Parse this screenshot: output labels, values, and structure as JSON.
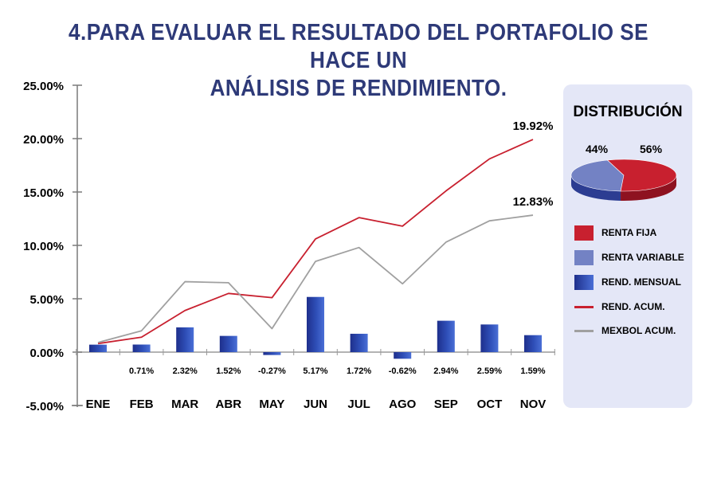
{
  "page": {
    "title_line1": "4.PARA EVALUAR EL RESULTADO DEL PORTAFOLIO SE HACE UN",
    "title_line2": "ANÁLISIS DE RENDIMIENTO."
  },
  "chart_data": {
    "type": "bar",
    "categories": [
      "ENE",
      "FEB",
      "MAR",
      "ABR",
      "MAY",
      "JUN",
      "JUL",
      "AGO",
      "SEP",
      "OCT",
      "NOV"
    ],
    "ylim": [
      -5,
      25
    ],
    "yticks": [
      -5,
      0,
      5,
      10,
      15,
      20,
      25
    ],
    "ytick_labels": [
      "-5.00%",
      "0.00%",
      "5.00%",
      "10.00%",
      "15.00%",
      "20.00%",
      "25.00%"
    ],
    "series": [
      {
        "name": "REND. MENSUAL",
        "kind": "bar",
        "color": "#243a9c",
        "values": [
          0.7,
          0.71,
          2.32,
          1.52,
          -0.27,
          5.17,
          1.72,
          -0.62,
          2.94,
          2.59,
          1.59
        ],
        "labels": [
          "",
          "0.71%",
          "2.32%",
          "1.52%",
          "-0.27%",
          "5.17%",
          "1.72%",
          "-0.62%",
          "2.94%",
          "2.59%",
          "1.59%"
        ]
      },
      {
        "name": "REND. ACUM.",
        "kind": "line",
        "color": "#c8202f",
        "values": [
          0.8,
          1.4,
          3.9,
          5.5,
          5.1,
          10.6,
          12.6,
          11.8,
          15.1,
          18.1,
          19.92
        ],
        "end_label": "19.92%"
      },
      {
        "name": "MEXBOL ACUM.",
        "kind": "line",
        "color": "#a0a0a0",
        "values": [
          0.9,
          2.0,
          6.6,
          6.5,
          2.2,
          8.5,
          9.8,
          6.4,
          10.3,
          12.3,
          12.83
        ],
        "end_label": "12.83%"
      }
    ]
  },
  "distribution": {
    "title": "DISTRIBUCIÓN",
    "slices": [
      {
        "name": "RENTA VARIABLE",
        "value": 44,
        "label": "44%",
        "color": "#7382c4",
        "side": "#2c3d92"
      },
      {
        "name": "RENTA FIJA",
        "value": 56,
        "label": "56%",
        "color": "#c8202f",
        "side": "#8e1220"
      }
    ]
  },
  "legend": {
    "items": [
      {
        "label": "RENTA FIJA",
        "type": "swatch",
        "color": "#c8202f"
      },
      {
        "label": "RENTA VARIABLE",
        "type": "swatch",
        "color": "#7382c4"
      },
      {
        "label": "REND. MENSUAL",
        "type": "swatch",
        "color": "#243a9c"
      },
      {
        "label": "REND. ACUM.",
        "type": "line",
        "color": "#c8202f"
      },
      {
        "label": "MEXBOL ACUM.",
        "type": "line",
        "color": "#a0a0a0"
      }
    ]
  }
}
